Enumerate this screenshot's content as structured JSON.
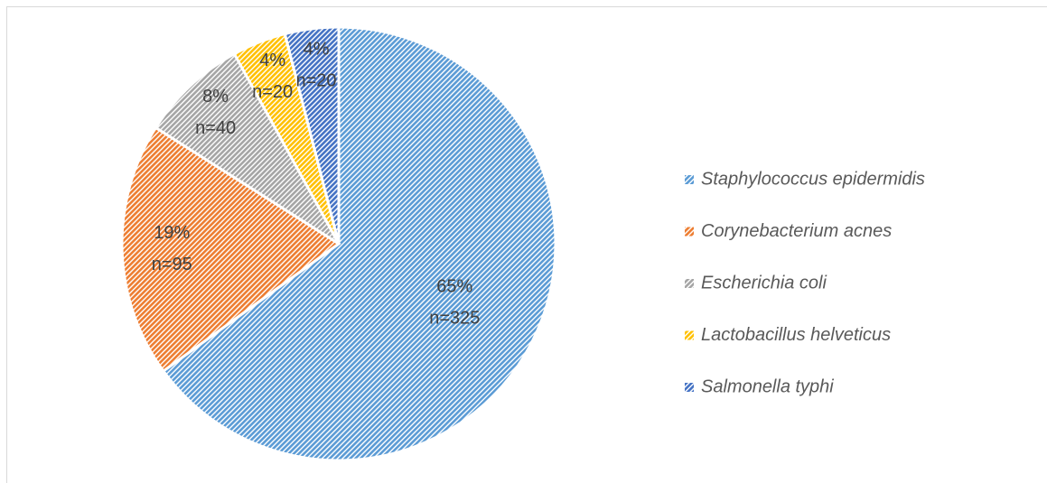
{
  "chart_data": {
    "type": "pie",
    "categories": [
      "Staphylococcus epidermidis",
      "Corynebacterium acnes",
      "Escherichia coli",
      "Lactobacillus helveticus",
      "Salmonella typhi"
    ],
    "values": [
      65,
      19,
      8,
      4,
      4
    ],
    "value_labels": [
      "65%",
      "19%",
      "8%",
      "4%",
      "4%"
    ],
    "counts": [
      325,
      95,
      40,
      20,
      20
    ],
    "count_labels": [
      "n=325",
      "n=95",
      "n=40",
      "n=20",
      "n=20"
    ],
    "colors": [
      "#5b9bd5",
      "#ed7d31",
      "#a5a5a5",
      "#ffc000",
      "#4472c4"
    ],
    "legend": "right"
  }
}
